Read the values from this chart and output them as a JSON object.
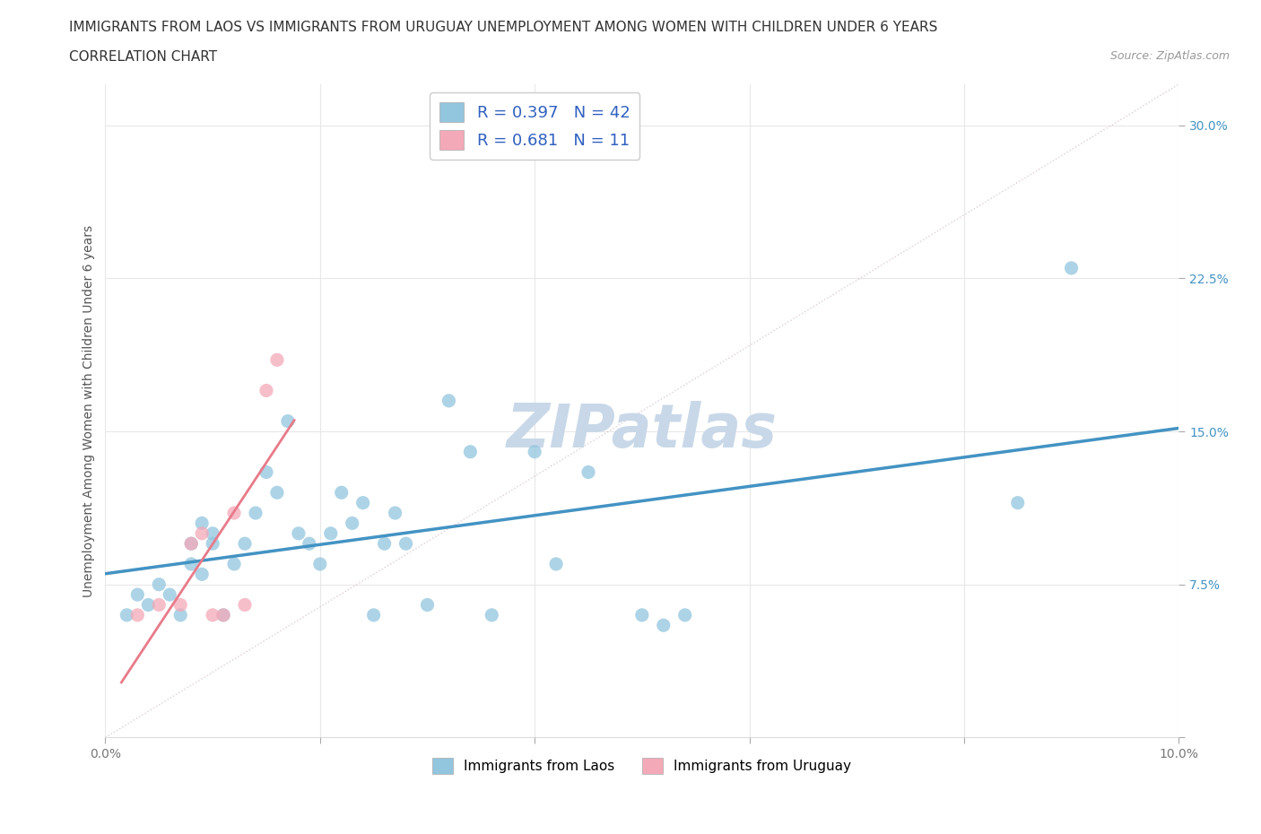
{
  "title_line1": "IMMIGRANTS FROM LAOS VS IMMIGRANTS FROM URUGUAY UNEMPLOYMENT AMONG WOMEN WITH CHILDREN UNDER 6 YEARS",
  "title_line2": "CORRELATION CHART",
  "source_text": "Source: ZipAtlas.com",
  "ylabel": "Unemployment Among Women with Children Under 6 years",
  "xlim": [
    0.0,
    0.1
  ],
  "ylim": [
    0.0,
    0.32
  ],
  "xticks": [
    0.0,
    0.02,
    0.04,
    0.06,
    0.08,
    0.1
  ],
  "xticklabels": [
    "0.0%",
    "",
    "",
    "",
    "",
    "10.0%"
  ],
  "yticks": [
    0.0,
    0.075,
    0.15,
    0.225,
    0.3
  ],
  "yticklabels": [
    "",
    "7.5%",
    "15.0%",
    "22.5%",
    "30.0%"
  ],
  "r_laos": 0.397,
  "n_laos": 42,
  "r_uruguay": 0.681,
  "n_uruguay": 11,
  "color_laos": "#92c5de",
  "color_uruguay": "#f4a9b8",
  "trendline_laos_color": "#4393c3",
  "trendline_uruguay_color": "#e87a8a",
  "diagonal_color": "#d0b8c8",
  "watermark_text": "ZIPatlas",
  "laos_x": [
    0.002,
    0.003,
    0.004,
    0.005,
    0.006,
    0.007,
    0.008,
    0.008,
    0.009,
    0.009,
    0.01,
    0.01,
    0.011,
    0.012,
    0.013,
    0.014,
    0.015,
    0.016,
    0.017,
    0.018,
    0.019,
    0.02,
    0.021,
    0.022,
    0.023,
    0.024,
    0.025,
    0.026,
    0.027,
    0.028,
    0.03,
    0.032,
    0.034,
    0.036,
    0.04,
    0.042,
    0.045,
    0.05,
    0.052,
    0.054,
    0.085,
    0.09
  ],
  "laos_y": [
    0.06,
    0.07,
    0.065,
    0.075,
    0.07,
    0.06,
    0.085,
    0.095,
    0.08,
    0.105,
    0.095,
    0.1,
    0.06,
    0.085,
    0.095,
    0.11,
    0.13,
    0.12,
    0.155,
    0.1,
    0.095,
    0.085,
    0.1,
    0.12,
    0.105,
    0.115,
    0.06,
    0.095,
    0.11,
    0.095,
    0.065,
    0.165,
    0.14,
    0.06,
    0.14,
    0.085,
    0.13,
    0.06,
    0.055,
    0.06,
    0.115,
    0.23
  ],
  "uruguay_x": [
    0.003,
    0.005,
    0.007,
    0.008,
    0.009,
    0.01,
    0.011,
    0.012,
    0.013,
    0.015,
    0.016
  ],
  "uruguay_y": [
    0.06,
    0.065,
    0.065,
    0.095,
    0.1,
    0.06,
    0.06,
    0.11,
    0.065,
    0.17,
    0.185
  ],
  "grid_color": "#e8e8e8",
  "background_color": "#ffffff",
  "title_fontsize": 11,
  "axis_label_fontsize": 10,
  "tick_fontsize": 10,
  "legend_fontsize": 13,
  "watermark_fontsize": 48,
  "watermark_color": "#c8d8e8",
  "legend_r_color": "#3060c0",
  "tick_color_y": "#4393c3",
  "tick_color_x": "#777777"
}
